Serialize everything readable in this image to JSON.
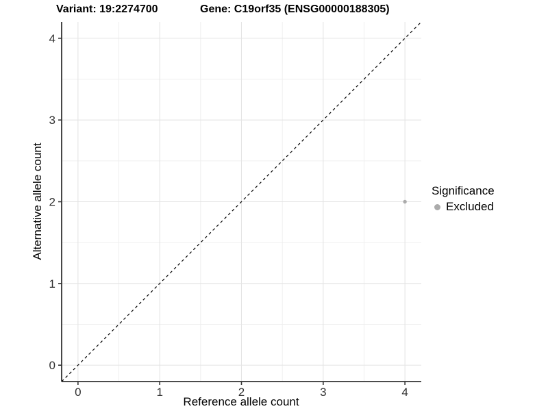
{
  "chart_data": {
    "type": "scatter",
    "title_left": "Variant: 19:2274700",
    "title_right": "Gene: C19orf35 (ENSG00000188305)",
    "xlabel": "Reference allele count",
    "ylabel": "Alternative allele count",
    "xlim": [
      -0.2,
      4.2
    ],
    "ylim": [
      -0.2,
      4.2
    ],
    "xticks": [
      0,
      1,
      2,
      3,
      4
    ],
    "yticks": [
      0,
      1,
      2,
      3,
      4
    ],
    "xminor": [
      0.5,
      1.5,
      2.5,
      3.5
    ],
    "yminor": [
      0.5,
      1.5,
      2.5,
      3.5
    ],
    "grid": true,
    "identity_line": {
      "style": "dashed",
      "color": "#000000",
      "slope": 1,
      "intercept": 0
    },
    "series": [
      {
        "name": "Excluded",
        "color": "#ababab",
        "points": [
          [
            4,
            2
          ]
        ]
      }
    ],
    "legend": {
      "title": "Significance",
      "position": "right",
      "entries": [
        {
          "label": "Excluded",
          "color": "#ababab"
        }
      ]
    }
  },
  "colors": {
    "background": "#ffffff",
    "axis_line": "#333333",
    "tick_label": "#303030",
    "grid_major": "#e4e4e4",
    "grid_minor": "#efefef",
    "title_text": "#000000"
  }
}
